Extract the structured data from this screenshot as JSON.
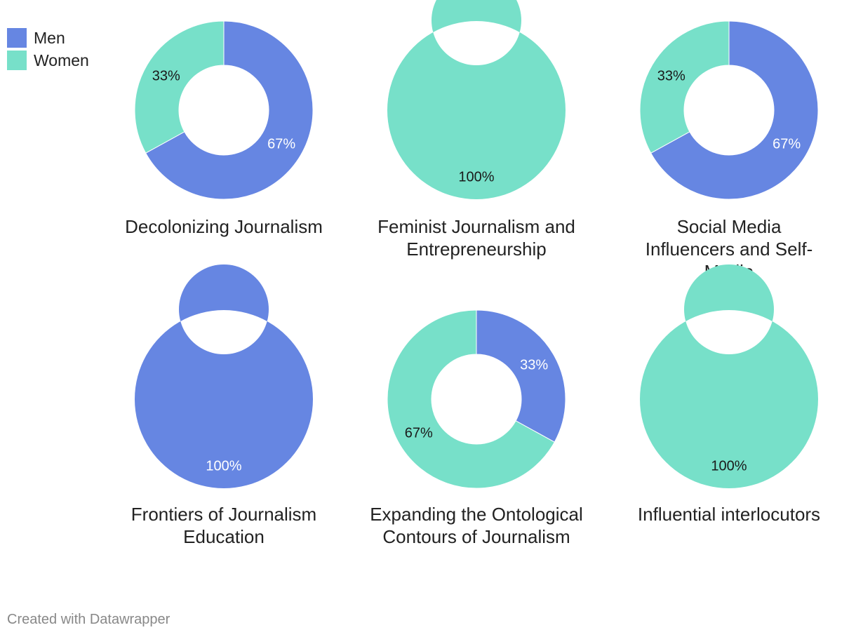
{
  "legend": [
    {
      "label": "Men",
      "color": "#6686e2"
    },
    {
      "label": "Women",
      "color": "#77e0c9"
    }
  ],
  "footer": "Created with Datawrapper",
  "chart_data": [
    {
      "type": "pie",
      "title": "Decolonizing Journalism",
      "categories": [
        "Men",
        "Women"
      ],
      "values": [
        67,
        33
      ],
      "labels": [
        "67%",
        "33%"
      ]
    },
    {
      "type": "pie",
      "title": "Feminist Journalism and Entrepreneurship",
      "categories": [
        "Men",
        "Women"
      ],
      "values": [
        0,
        100
      ],
      "labels": [
        "",
        "100%"
      ]
    },
    {
      "type": "pie",
      "title": "Social Media Influencers and Self-Media",
      "categories": [
        "Men",
        "Women"
      ],
      "values": [
        67,
        33
      ],
      "labels": [
        "67%",
        "33%"
      ]
    },
    {
      "type": "pie",
      "title": "Frontiers of Journalism Education",
      "categories": [
        "Men",
        "Women"
      ],
      "values": [
        100,
        0
      ],
      "labels": [
        "100%",
        ""
      ]
    },
    {
      "type": "pie",
      "title": "Expanding the Ontological Contours of Journalism",
      "categories": [
        "Men",
        "Women"
      ],
      "values": [
        33,
        67
      ],
      "labels": [
        "33%",
        "67%"
      ]
    },
    {
      "type": "pie",
      "title": "Influential interlocutors",
      "categories": [
        "Men",
        "Women"
      ],
      "values": [
        0,
        100
      ],
      "labels": [
        "",
        "100%"
      ]
    }
  ]
}
